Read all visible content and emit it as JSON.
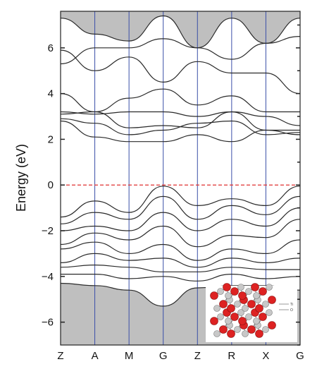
{
  "chart_data": {
    "type": "line",
    "title": "",
    "xlabel": "",
    "ylabel": "Energy (eV)",
    "ylim": [
      -7,
      7.6
    ],
    "yticks": [
      -6,
      -4,
      -2,
      0,
      2,
      4,
      6
    ],
    "path_points": [
      "Z",
      "A",
      "M",
      "G",
      "Z",
      "R",
      "X",
      "G"
    ],
    "grid": false,
    "fermi_level": 0,
    "gap_shading": {
      "upper_edge_min": 6.0,
      "lower_edge_max": -4.4
    },
    "colors": {
      "bands": "#2a2a2a",
      "fermi_line": "#e03030",
      "path_lines": "#3a4fa8",
      "shading": "#bfbfbf",
      "atom_large": "#dd2222",
      "atom_small": "#c8c8c8"
    },
    "inset": {
      "type": "crystal-structure",
      "legend": [
        "Ti",
        "O"
      ]
    },
    "bands": [
      [
        7.3,
        6.6,
        6.3,
        7.4,
        6.0,
        7.3,
        6.2,
        7.3
      ],
      [
        5.3,
        6.0,
        6.0,
        6.4,
        6.0,
        5.5,
        6.2,
        6.5
      ],
      [
        5.9,
        5.0,
        5.6,
        4.5,
        5.4,
        4.9,
        4.9,
        4.0
      ],
      [
        4.0,
        3.2,
        3.8,
        4.2,
        3.5,
        3.9,
        3.2,
        3.2
      ],
      [
        3.2,
        3.1,
        3.2,
        3.2,
        3.0,
        3.2,
        3.0,
        2.6
      ],
      [
        3.1,
        3.2,
        2.5,
        2.6,
        2.5,
        3.2,
        2.4,
        2.4
      ],
      [
        2.9,
        2.7,
        2.2,
        2.4,
        2.7,
        2.8,
        2.2,
        2.3
      ],
      [
        2.8,
        2.1,
        1.9,
        1.9,
        2.2,
        1.9,
        2.4,
        2.2
      ],
      [
        -1.4,
        -0.7,
        -1.2,
        -0.05,
        -0.9,
        -0.6,
        -0.9,
        -0.05
      ],
      [
        -1.7,
        -1.2,
        -1.5,
        -0.5,
        -1.5,
        -0.9,
        -1.3,
        -0.5
      ],
      [
        -2.0,
        -1.8,
        -2.0,
        -1.2,
        -2.0,
        -1.5,
        -1.8,
        -1.0
      ],
      [
        -2.6,
        -2.1,
        -2.4,
        -1.8,
        -2.7,
        -2.2,
        -2.3,
        -1.5
      ],
      [
        -2.8,
        -2.5,
        -3.0,
        -2.6,
        -3.3,
        -2.8,
        -3.0,
        -2.4
      ],
      [
        -3.4,
        -3.0,
        -3.3,
        -3.2,
        -3.6,
        -3.2,
        -3.4,
        -3.2
      ],
      [
        -3.6,
        -3.5,
        -3.6,
        -3.8,
        -3.8,
        -3.6,
        -3.7,
        -3.7
      ],
      [
        -3.9,
        -3.9,
        -4.1,
        -4.0,
        -4.2,
        -3.9,
        -4.1,
        -4.0
      ],
      [
        -4.3,
        -4.4,
        -4.6,
        -5.3,
        -4.5,
        -4.4,
        -4.4,
        -4.6
      ]
    ]
  }
}
